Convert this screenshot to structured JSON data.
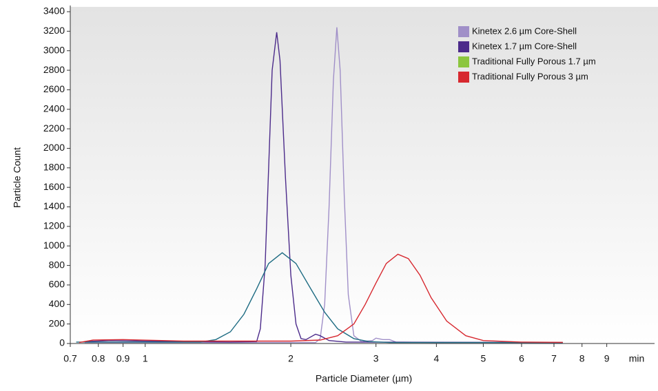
{
  "chart_data": {
    "type": "line",
    "x_label": "Particle Diameter (µm)",
    "y_label": "Particle Count",
    "x_unit": "min",
    "x_log": true,
    "xlim": [
      0.7,
      11.3
    ],
    "ylim": [
      0,
      3400
    ],
    "xticks": [
      0.7,
      0.8,
      0.9,
      1,
      2,
      3,
      4,
      5,
      6,
      7,
      8,
      9
    ],
    "yticks": [
      0,
      200,
      400,
      600,
      800,
      1000,
      1200,
      1400,
      1600,
      1800,
      2000,
      2200,
      2400,
      2600,
      2800,
      3000,
      3200,
      3400
    ],
    "legend": "upper right",
    "series": [
      {
        "name": "Kinetex 2.6 µm Core-Shell",
        "color": "#a08fc8",
        "x": [
          0.75,
          1.0,
          1.5,
          2.0,
          2.25,
          2.3,
          2.35,
          2.4,
          2.45,
          2.49,
          2.53,
          2.58,
          2.63,
          2.7,
          2.8,
          2.95,
          3.0,
          3.1,
          3.2,
          3.3,
          4.0,
          7.3
        ],
        "values": [
          10,
          10,
          10,
          10,
          10,
          50,
          400,
          1400,
          2700,
          3240,
          2800,
          1500,
          500,
          80,
          20,
          30,
          55,
          40,
          40,
          15,
          10,
          10
        ]
      },
      {
        "name": "Kinetex 1.7 µm Core-Shell",
        "color": "#4b2a8a",
        "x": [
          0.75,
          0.85,
          1.0,
          1.5,
          1.7,
          1.73,
          1.77,
          1.8,
          1.83,
          1.87,
          1.9,
          1.95,
          2.0,
          2.05,
          2.1,
          2.15,
          2.25,
          2.3,
          2.4,
          2.6,
          7.3
        ],
        "values": [
          20,
          30,
          25,
          15,
          20,
          150,
          800,
          1800,
          2800,
          3190,
          2900,
          1700,
          700,
          200,
          50,
          40,
          95,
          80,
          30,
          15,
          10
        ]
      },
      {
        "name": "Traditional Fully Porous 1.7 µm",
        "color": "#1d6b82",
        "legend_color": "#8cc63f",
        "x": [
          0.72,
          1.0,
          1.3,
          1.4,
          1.5,
          1.6,
          1.7,
          1.8,
          1.92,
          2.05,
          2.2,
          2.35,
          2.5,
          2.7,
          2.9,
          3.2,
          7.3
        ],
        "values": [
          15,
          15,
          15,
          40,
          120,
          300,
          560,
          820,
          930,
          820,
          560,
          320,
          150,
          50,
          20,
          10,
          10
        ]
      },
      {
        "name": "Traditional Fully Porous 3 µm",
        "color": "#d7282f",
        "x": [
          0.73,
          0.78,
          0.9,
          1.2,
          2.0,
          2.3,
          2.5,
          2.7,
          2.85,
          3.0,
          3.15,
          3.33,
          3.5,
          3.7,
          3.9,
          4.2,
          4.6,
          5.0,
          6.0,
          7.3
        ],
        "values": [
          10,
          35,
          40,
          25,
          25,
          35,
          80,
          200,
          400,
          620,
          820,
          915,
          870,
          700,
          470,
          230,
          80,
          30,
          15,
          12
        ]
      }
    ]
  }
}
